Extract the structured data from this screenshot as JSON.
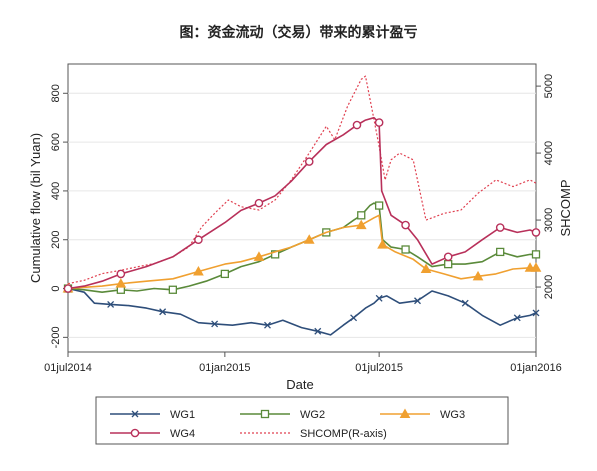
{
  "figure_title": "图：资金流动（交易）带来的累计盈亏",
  "chart_data": {
    "type": "line",
    "xlabel": "Date",
    "ylabel": "Cumulative flow (bil Yuan)",
    "y2label": "SHCOMP",
    "x_ticks": [
      "01jul2014",
      "01jan2015",
      "01jul2015",
      "01jan2016"
    ],
    "x_range": [
      "2014-07-01",
      "2016-01-01"
    ],
    "y_ticks": [
      -200,
      0,
      200,
      400,
      600,
      800
    ],
    "ylim": [
      -260,
      920
    ],
    "y2_ticks": [
      2000,
      3000,
      4000,
      5000
    ],
    "y2lim": [
      1030,
      5330
    ],
    "legend_placement": "bottom",
    "series": [
      {
        "name": "WG1",
        "axis": "left",
        "color": "#2e4e7a",
        "marker": "x",
        "points": [
          [
            "2014-07-01",
            0
          ],
          [
            "2014-07-20",
            -15
          ],
          [
            "2014-08-01",
            -60
          ],
          [
            "2014-08-20",
            -65
          ],
          [
            "2014-09-10",
            -70
          ],
          [
            "2014-10-01",
            -80
          ],
          [
            "2014-10-20",
            -95
          ],
          [
            "2014-11-10",
            -105
          ],
          [
            "2014-12-01",
            -140
          ],
          [
            "2014-12-20",
            -145
          ],
          [
            "2015-01-10",
            -150
          ],
          [
            "2015-02-01",
            -140
          ],
          [
            "2015-02-20",
            -150
          ],
          [
            "2015-03-10",
            -130
          ],
          [
            "2015-04-01",
            -160
          ],
          [
            "2015-04-20",
            -175
          ],
          [
            "2015-05-05",
            -190
          ],
          [
            "2015-05-20",
            -150
          ],
          [
            "2015-06-01",
            -120
          ],
          [
            "2015-06-15",
            -80
          ],
          [
            "2015-06-25",
            -60
          ],
          [
            "2015-07-01",
            -40
          ],
          [
            "2015-07-10",
            -30
          ],
          [
            "2015-07-25",
            -60
          ],
          [
            "2015-08-15",
            -50
          ],
          [
            "2015-09-01",
            -10
          ],
          [
            "2015-09-20",
            -30
          ],
          [
            "2015-10-10",
            -60
          ],
          [
            "2015-10-30",
            -110
          ],
          [
            "2015-11-20",
            -150
          ],
          [
            "2015-12-10",
            -120
          ],
          [
            "2015-12-25",
            -110
          ],
          [
            "2016-01-01",
            -100
          ]
        ]
      },
      {
        "name": "WG2",
        "axis": "left",
        "color": "#5a8a3a",
        "marker": "square",
        "points": [
          [
            "2014-07-01",
            0
          ],
          [
            "2014-07-20",
            -5
          ],
          [
            "2014-08-10",
            -15
          ],
          [
            "2014-09-01",
            -5
          ],
          [
            "2014-09-20",
            -10
          ],
          [
            "2014-10-10",
            0
          ],
          [
            "2014-11-01",
            -5
          ],
          [
            "2014-11-20",
            10
          ],
          [
            "2014-12-10",
            30
          ],
          [
            "2015-01-01",
            60
          ],
          [
            "2015-01-20",
            90
          ],
          [
            "2015-02-10",
            110
          ],
          [
            "2015-03-01",
            140
          ],
          [
            "2015-03-20",
            170
          ],
          [
            "2015-04-10",
            200
          ],
          [
            "2015-04-30",
            230
          ],
          [
            "2015-05-20",
            250
          ],
          [
            "2015-06-01",
            280
          ],
          [
            "2015-06-10",
            300
          ],
          [
            "2015-06-20",
            340
          ],
          [
            "2015-06-25",
            350
          ],
          [
            "2015-07-01",
            340
          ],
          [
            "2015-07-05",
            200
          ],
          [
            "2015-07-15",
            170
          ],
          [
            "2015-08-01",
            160
          ],
          [
            "2015-08-15",
            130
          ],
          [
            "2015-09-01",
            90
          ],
          [
            "2015-09-20",
            100
          ],
          [
            "2015-10-10",
            100
          ],
          [
            "2015-10-30",
            110
          ],
          [
            "2015-11-20",
            150
          ],
          [
            "2015-12-10",
            130
          ],
          [
            "2015-12-25",
            140
          ],
          [
            "2016-01-01",
            140
          ]
        ]
      },
      {
        "name": "WG3",
        "axis": "left",
        "color": "#f0a030",
        "marker": "triangle",
        "points": [
          [
            "2014-07-01",
            0
          ],
          [
            "2014-07-20",
            5
          ],
          [
            "2014-08-10",
            10
          ],
          [
            "2014-09-01",
            20
          ],
          [
            "2014-10-01",
            30
          ],
          [
            "2014-11-01",
            40
          ],
          [
            "2014-12-01",
            70
          ],
          [
            "2015-01-01",
            100
          ],
          [
            "2015-01-20",
            110
          ],
          [
            "2015-02-10",
            130
          ],
          [
            "2015-03-01",
            150
          ],
          [
            "2015-03-20",
            170
          ],
          [
            "2015-04-10",
            200
          ],
          [
            "2015-04-30",
            230
          ],
          [
            "2015-05-20",
            250
          ],
          [
            "2015-06-10",
            260
          ],
          [
            "2015-06-25",
            290
          ],
          [
            "2015-07-01",
            300
          ],
          [
            "2015-07-05",
            180
          ],
          [
            "2015-07-20",
            150
          ],
          [
            "2015-08-10",
            120
          ],
          [
            "2015-08-25",
            80
          ],
          [
            "2015-09-15",
            60
          ],
          [
            "2015-10-05",
            40
          ],
          [
            "2015-10-25",
            50
          ],
          [
            "2015-11-15",
            60
          ],
          [
            "2015-12-05",
            80
          ],
          [
            "2015-12-25",
            85
          ],
          [
            "2016-01-01",
            85
          ]
        ]
      },
      {
        "name": "WG4",
        "axis": "left",
        "color": "#b8305a",
        "marker": "circle",
        "points": [
          [
            "2014-07-01",
            0
          ],
          [
            "2014-07-20",
            10
          ],
          [
            "2014-08-10",
            30
          ],
          [
            "2014-09-01",
            60
          ],
          [
            "2014-10-01",
            90
          ],
          [
            "2014-11-01",
            130
          ],
          [
            "2014-12-01",
            200
          ],
          [
            "2015-01-01",
            270
          ],
          [
            "2015-01-20",
            320
          ],
          [
            "2015-02-10",
            350
          ],
          [
            "2015-03-01",
            380
          ],
          [
            "2015-03-20",
            440
          ],
          [
            "2015-04-10",
            520
          ],
          [
            "2015-04-30",
            590
          ],
          [
            "2015-05-20",
            630
          ],
          [
            "2015-06-05",
            670
          ],
          [
            "2015-06-15",
            690
          ],
          [
            "2015-06-25",
            700
          ],
          [
            "2015-07-01",
            680
          ],
          [
            "2015-07-04",
            400
          ],
          [
            "2015-07-15",
            300
          ],
          [
            "2015-08-01",
            260
          ],
          [
            "2015-08-15",
            200
          ],
          [
            "2015-09-01",
            100
          ],
          [
            "2015-09-20",
            130
          ],
          [
            "2015-10-10",
            150
          ],
          [
            "2015-10-30",
            200
          ],
          [
            "2015-11-20",
            250
          ],
          [
            "2015-12-10",
            230
          ],
          [
            "2015-12-25",
            240
          ],
          [
            "2016-01-01",
            230
          ]
        ]
      },
      {
        "name": "SHCOMP(R-axis)",
        "axis": "right",
        "color": "#e04050",
        "dashed": true,
        "points": [
          [
            "2014-07-01",
            2050
          ],
          [
            "2014-07-20",
            2100
          ],
          [
            "2014-08-10",
            2200
          ],
          [
            "2014-09-01",
            2250
          ],
          [
            "2014-09-20",
            2300
          ],
          [
            "2014-10-10",
            2350
          ],
          [
            "2014-11-01",
            2450
          ],
          [
            "2014-11-20",
            2600
          ],
          [
            "2014-12-05",
            2900
          ],
          [
            "2014-12-20",
            3100
          ],
          [
            "2015-01-05",
            3300
          ],
          [
            "2015-01-20",
            3200
          ],
          [
            "2015-02-10",
            3150
          ],
          [
            "2015-03-01",
            3300
          ],
          [
            "2015-03-20",
            3600
          ],
          [
            "2015-04-10",
            4000
          ],
          [
            "2015-04-30",
            4400
          ],
          [
            "2015-05-10",
            4200
          ],
          [
            "2015-05-25",
            4700
          ],
          [
            "2015-06-10",
            5100
          ],
          [
            "2015-06-15",
            5150
          ],
          [
            "2015-06-25",
            4500
          ],
          [
            "2015-07-01",
            4100
          ],
          [
            "2015-07-08",
            3600
          ],
          [
            "2015-07-15",
            3900
          ],
          [
            "2015-07-25",
            4000
          ],
          [
            "2015-08-10",
            3900
          ],
          [
            "2015-08-25",
            3000
          ],
          [
            "2015-09-15",
            3100
          ],
          [
            "2015-10-05",
            3150
          ],
          [
            "2015-10-25",
            3400
          ],
          [
            "2015-11-15",
            3600
          ],
          [
            "2015-12-05",
            3500
          ],
          [
            "2015-12-25",
            3600
          ],
          [
            "2016-01-01",
            3550
          ]
        ]
      }
    ]
  }
}
